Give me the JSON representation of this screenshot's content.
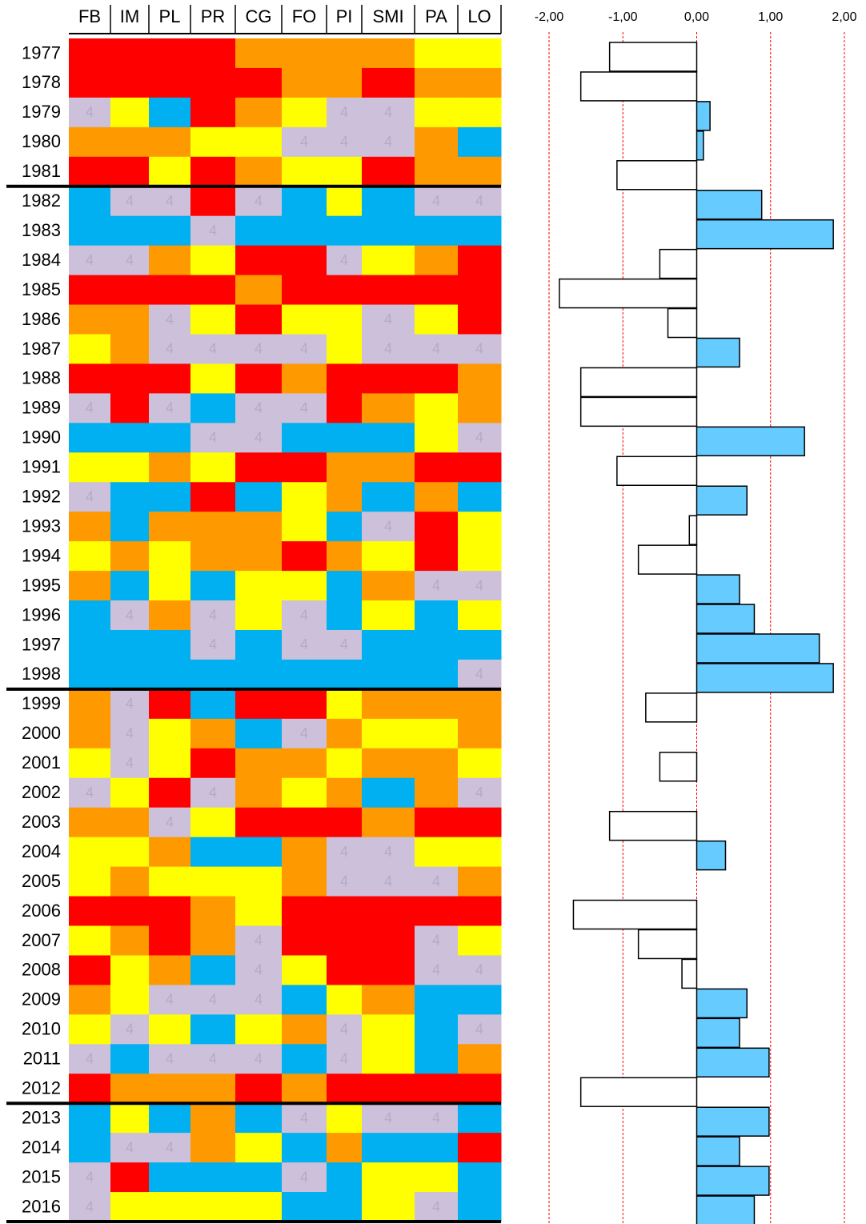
{
  "chart_data": [
    {
      "type": "heatmap",
      "columns": [
        "FB",
        "IM",
        "PL",
        "PR",
        "CG",
        "FO",
        "PI",
        "SMI",
        "PA",
        "LO"
      ],
      "rows": [
        "1977",
        "1978",
        "1979",
        "1980",
        "1981",
        "1982",
        "1983",
        "1984",
        "1985",
        "1986",
        "1987",
        "1988",
        "1989",
        "1990",
        "1991",
        "1992",
        "1993",
        "1994",
        "1995",
        "1996",
        "1997",
        "1998",
        "1999",
        "2000",
        "2001",
        "2002",
        "2003",
        "2004",
        "2005",
        "2006",
        "2007",
        "2008",
        "2009",
        "2010",
        "2011",
        "2012",
        "2013",
        "2014",
        "2015",
        "2016"
      ],
      "values": [
        [
          1,
          1,
          1,
          1,
          2,
          2,
          2,
          2,
          3,
          3
        ],
        [
          1,
          1,
          1,
          1,
          1,
          2,
          2,
          1,
          2,
          2
        ],
        [
          4,
          3,
          5,
          1,
          2,
          3,
          4,
          4,
          3,
          3
        ],
        [
          2,
          2,
          2,
          3,
          3,
          4,
          4,
          4,
          2,
          5
        ],
        [
          1,
          1,
          3,
          1,
          2,
          3,
          3,
          1,
          2,
          2
        ],
        [
          5,
          4,
          4,
          1,
          4,
          5,
          3,
          5,
          4,
          4
        ],
        [
          5,
          5,
          5,
          4,
          5,
          5,
          5,
          5,
          5,
          5
        ],
        [
          4,
          4,
          2,
          3,
          1,
          1,
          4,
          3,
          2,
          1
        ],
        [
          1,
          1,
          1,
          1,
          2,
          1,
          1,
          1,
          1,
          1
        ],
        [
          2,
          2,
          4,
          3,
          1,
          3,
          3,
          4,
          3,
          1
        ],
        [
          3,
          2,
          4,
          4,
          4,
          4,
          3,
          4,
          4,
          4
        ],
        [
          1,
          1,
          1,
          3,
          1,
          2,
          1,
          1,
          1,
          2
        ],
        [
          4,
          1,
          4,
          5,
          4,
          4,
          1,
          2,
          3,
          2
        ],
        [
          5,
          5,
          5,
          4,
          4,
          5,
          5,
          5,
          3,
          4
        ],
        [
          3,
          3,
          2,
          3,
          1,
          1,
          2,
          2,
          1,
          1
        ],
        [
          4,
          5,
          5,
          1,
          5,
          3,
          2,
          5,
          2,
          5
        ],
        [
          2,
          5,
          2,
          2,
          2,
          3,
          5,
          4,
          1,
          3
        ],
        [
          3,
          2,
          3,
          2,
          2,
          1,
          2,
          3,
          1,
          3
        ],
        [
          2,
          5,
          3,
          5,
          3,
          3,
          5,
          2,
          4,
          4
        ],
        [
          5,
          4,
          2,
          4,
          3,
          4,
          5,
          3,
          5,
          3
        ],
        [
          5,
          5,
          5,
          4,
          5,
          4,
          4,
          5,
          5,
          5
        ],
        [
          5,
          5,
          5,
          5,
          5,
          5,
          5,
          5,
          5,
          4
        ],
        [
          2,
          4,
          1,
          5,
          1,
          1,
          3,
          2,
          2,
          2
        ],
        [
          2,
          4,
          3,
          2,
          5,
          4,
          2,
          3,
          3,
          2
        ],
        [
          3,
          4,
          3,
          1,
          2,
          2,
          3,
          2,
          2,
          3
        ],
        [
          4,
          3,
          1,
          4,
          2,
          3,
          2,
          5,
          2,
          4
        ],
        [
          2,
          2,
          4,
          3,
          1,
          1,
          1,
          2,
          1,
          1
        ],
        [
          3,
          3,
          2,
          5,
          5,
          2,
          4,
          4,
          3,
          3
        ],
        [
          3,
          2,
          3,
          3,
          3,
          2,
          4,
          4,
          4,
          2
        ],
        [
          1,
          1,
          1,
          2,
          3,
          1,
          1,
          1,
          1,
          1
        ],
        [
          3,
          2,
          1,
          2,
          4,
          1,
          1,
          1,
          4,
          3
        ],
        [
          1,
          3,
          2,
          5,
          4,
          3,
          1,
          1,
          4,
          4
        ],
        [
          2,
          3,
          4,
          4,
          4,
          5,
          3,
          2,
          5,
          5
        ],
        [
          3,
          4,
          3,
          5,
          3,
          2,
          4,
          3,
          5,
          4
        ],
        [
          4,
          5,
          4,
          4,
          4,
          5,
          4,
          3,
          5,
          2
        ],
        [
          1,
          2,
          2,
          2,
          1,
          2,
          1,
          1,
          1,
          1
        ],
        [
          5,
          3,
          5,
          2,
          5,
          4,
          3,
          4,
          4,
          5
        ],
        [
          5,
          4,
          4,
          2,
          3,
          5,
          2,
          5,
          5,
          1
        ],
        [
          4,
          1,
          5,
          5,
          5,
          4,
          5,
          3,
          3,
          5
        ],
        [
          4,
          3,
          3,
          3,
          3,
          5,
          5,
          3,
          4,
          5
        ]
      ],
      "colors": {
        "1": "#ff0000",
        "2": "#ff9900",
        "3": "#ffff00",
        "4": "#ccc0da",
        "5": "#00b0f0"
      },
      "labeled_values": [
        4
      ],
      "separators_after": [
        "1981",
        "1998",
        "2012",
        "2016"
      ]
    },
    {
      "type": "bar",
      "orientation": "horizontal",
      "values": [
        -1.18,
        -1.57,
        0.18,
        0.09,
        -1.08,
        0.88,
        1.85,
        -0.5,
        -1.86,
        -0.39,
        0.58,
        -1.57,
        -1.57,
        1.46,
        -1.08,
        0.68,
        -0.1,
        -0.79,
        0.58,
        0.78,
        1.66,
        1.85,
        -0.69,
        null,
        -0.5,
        null,
        -1.18,
        0.39,
        null,
        -1.67,
        -0.79,
        -0.2,
        0.68,
        0.58,
        0.98,
        -1.57,
        0.98,
        0.58,
        0.98,
        0.78
      ],
      "positive_color": "#66ccff",
      "negative_color": "#ffffff",
      "xlim": [
        -2,
        2
      ],
      "xticks": [
        {
          "value": -2,
          "label": "-2,00"
        },
        {
          "value": -1,
          "label": "-1,00"
        },
        {
          "value": 0,
          "label": "0,00"
        },
        {
          "value": 1,
          "label": "1,00"
        },
        {
          "value": 2,
          "label": "2,00"
        }
      ],
      "grid": true,
      "grid_color": "#ff0000"
    }
  ]
}
